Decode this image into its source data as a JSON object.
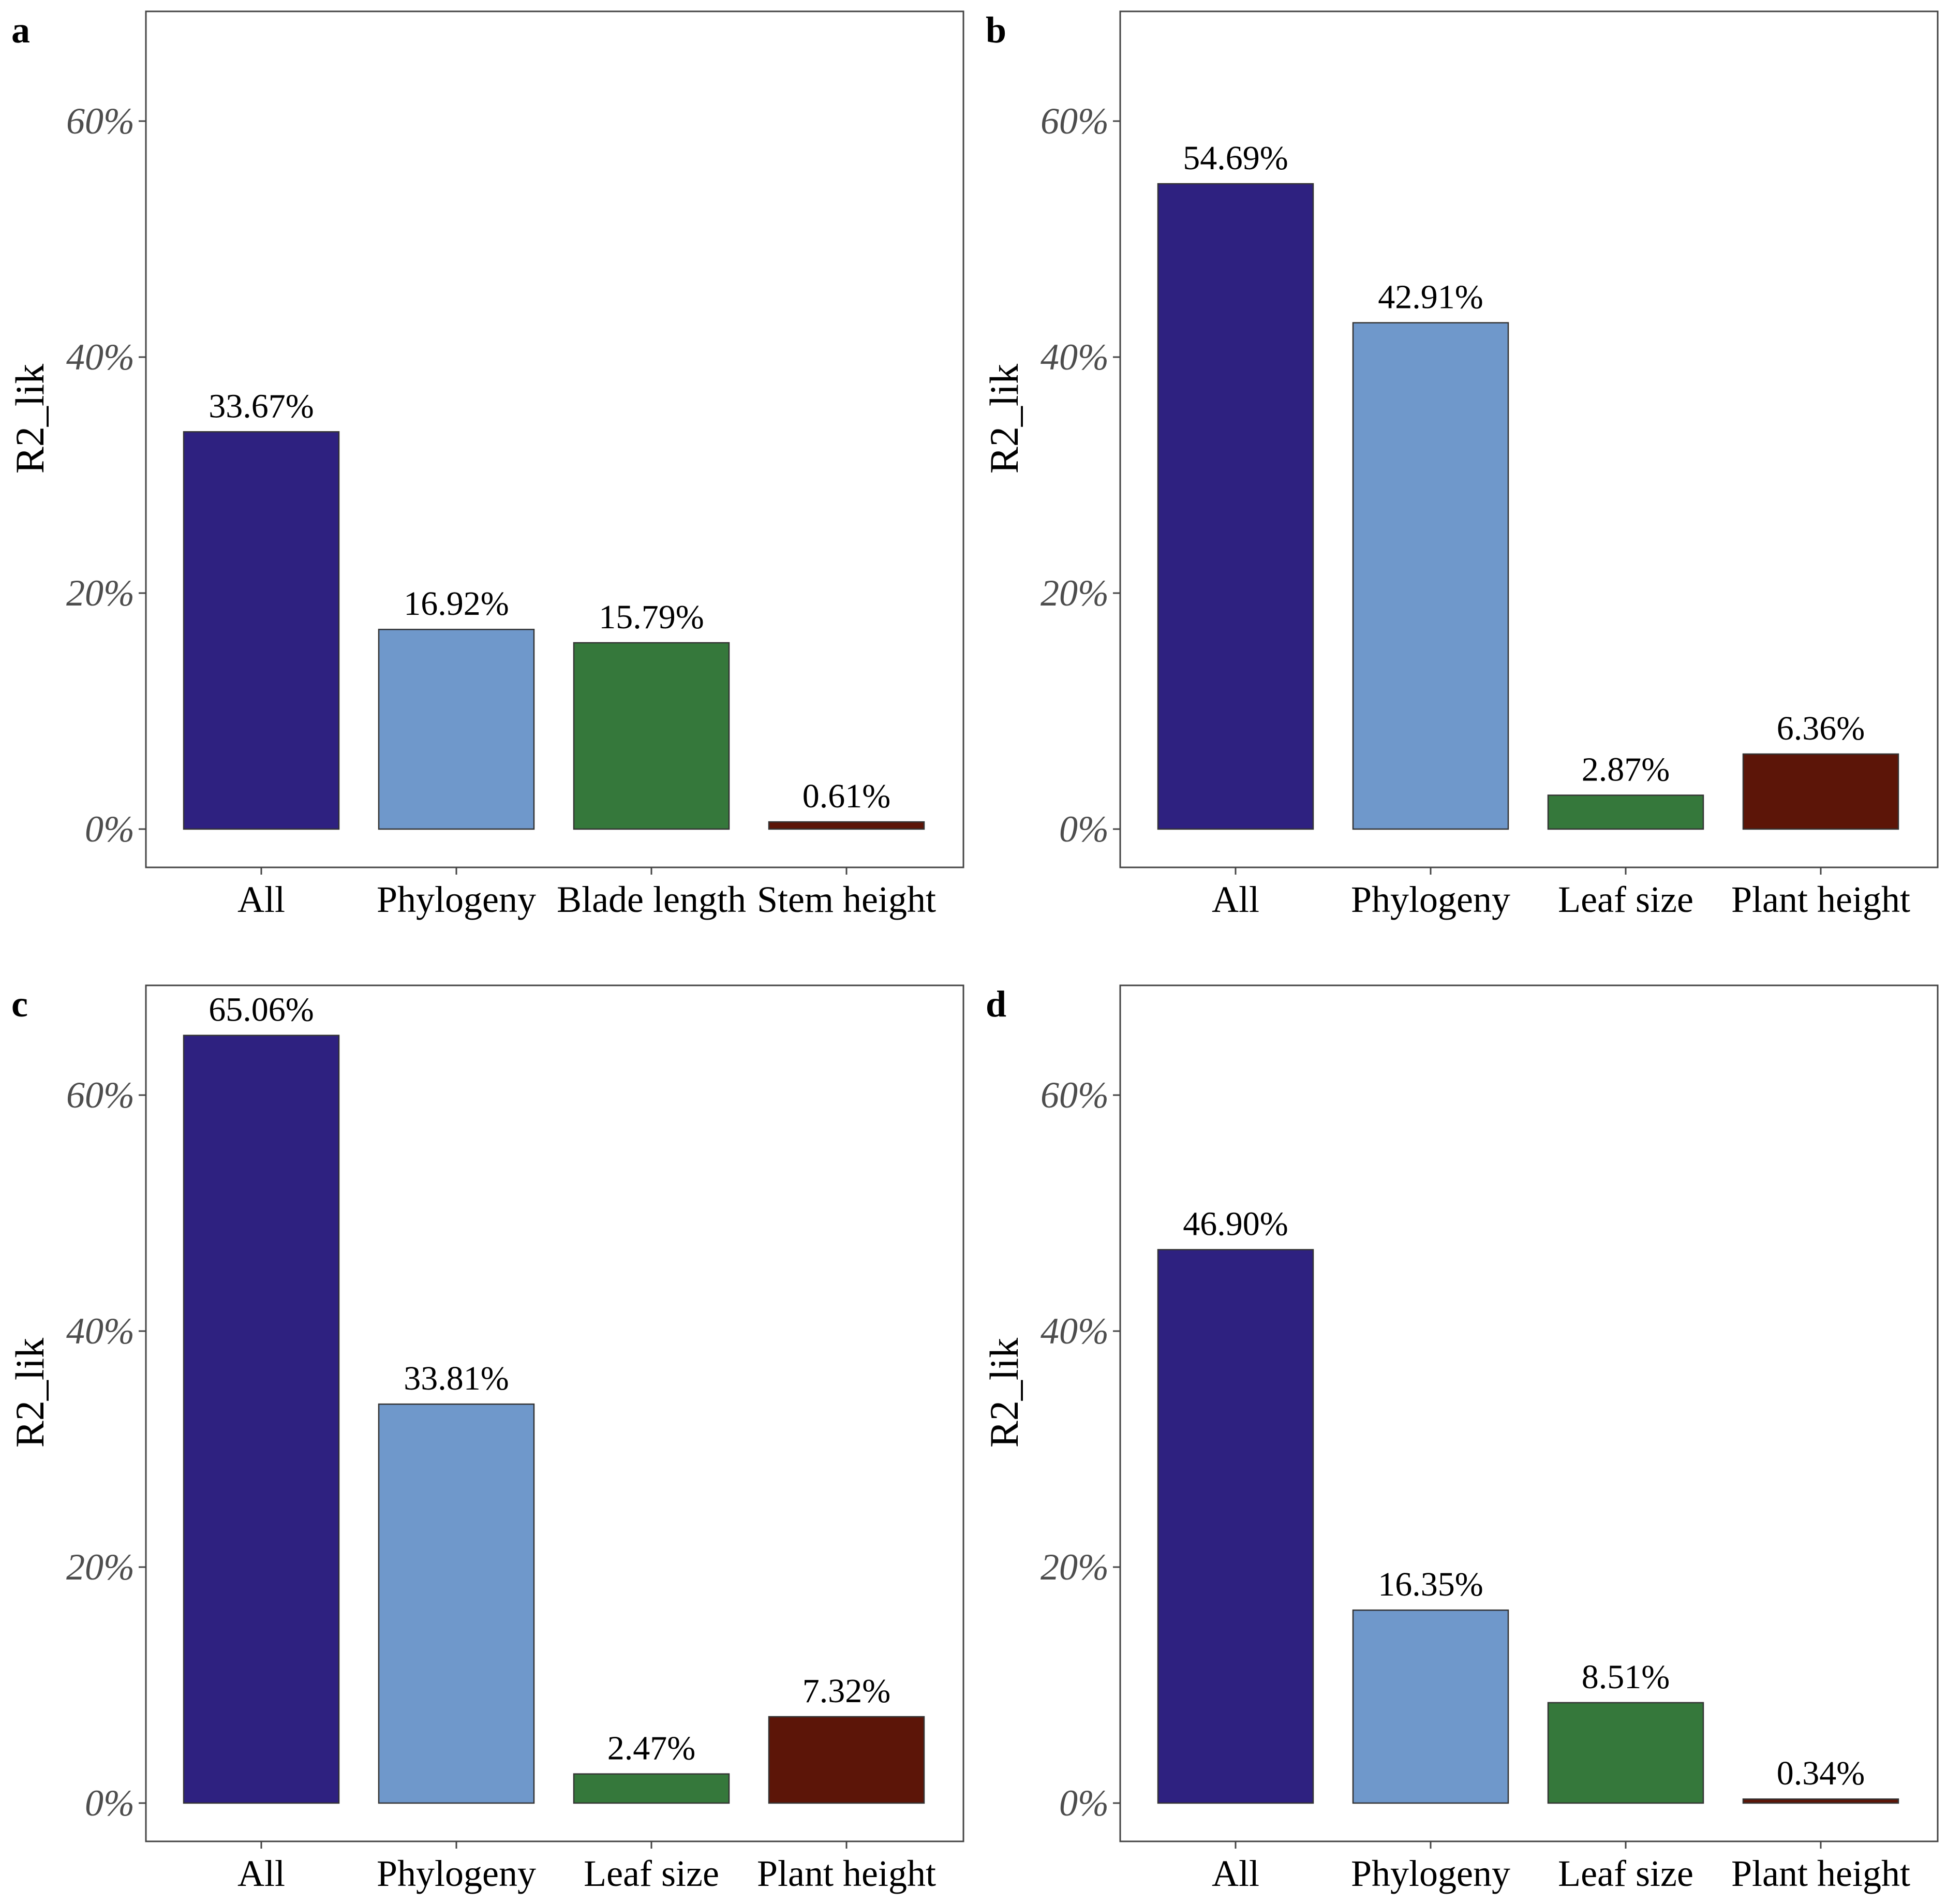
{
  "chart_data": [
    {
      "panel": "a",
      "type": "bar",
      "ylabel": "R2_lik",
      "ylim": [
        0,
        70
      ],
      "yticks": [
        "0%",
        "20%",
        "40%",
        "60%"
      ],
      "ytick_values": [
        0,
        20,
        40,
        60
      ],
      "categories": [
        "All",
        "Phylogeny",
        "Blade length",
        "Stem height"
      ],
      "values": [
        33.67,
        16.92,
        15.79,
        0.61
      ],
      "value_labels": [
        "33.67%",
        "16.92%",
        "15.79%",
        "0.61%"
      ],
      "colors": [
        "#2e2180",
        "#6f98cb",
        "#35783b",
        "#5c1508"
      ]
    },
    {
      "panel": "b",
      "type": "bar",
      "ylabel": "R2_lik",
      "ylim": [
        0,
        70
      ],
      "yticks": [
        "0%",
        "20%",
        "40%",
        "60%"
      ],
      "ytick_values": [
        0,
        20,
        40,
        60
      ],
      "categories": [
        "All",
        "Phylogeny",
        "Leaf size",
        "Plant height"
      ],
      "values": [
        54.69,
        42.91,
        2.87,
        6.36
      ],
      "value_labels": [
        "54.69%",
        "42.91%",
        "2.87%",
        "6.36%"
      ],
      "colors": [
        "#2e2180",
        "#6f98cb",
        "#35783b",
        "#5c1508"
      ]
    },
    {
      "panel": "c",
      "type": "bar",
      "ylabel": "R2_lik",
      "ylim": [
        0,
        70
      ],
      "yticks": [
        "0%",
        "20%",
        "40%",
        "60%"
      ],
      "ytick_values": [
        0,
        20,
        40,
        60
      ],
      "categories": [
        "All",
        "Phylogeny",
        "Leaf size",
        "Plant height"
      ],
      "values": [
        65.06,
        33.81,
        2.47,
        7.32
      ],
      "value_labels": [
        "65.06%",
        "33.81%",
        "2.47%",
        "7.32%"
      ],
      "colors": [
        "#2e2180",
        "#6f98cb",
        "#35783b",
        "#5c1508"
      ]
    },
    {
      "panel": "d",
      "type": "bar",
      "ylabel": "R2_lik",
      "ylim": [
        0,
        70
      ],
      "yticks": [
        "0%",
        "20%",
        "40%",
        "60%"
      ],
      "ytick_values": [
        0,
        20,
        40,
        60
      ],
      "categories": [
        "All",
        "Phylogeny",
        "Leaf size",
        "Plant height"
      ],
      "values": [
        46.9,
        16.35,
        8.51,
        0.34
      ],
      "value_labels": [
        "46.90%",
        "16.35%",
        "8.51%",
        "0.34%"
      ],
      "colors": [
        "#2e2180",
        "#6f98cb",
        "#35783b",
        "#5c1508"
      ]
    }
  ]
}
